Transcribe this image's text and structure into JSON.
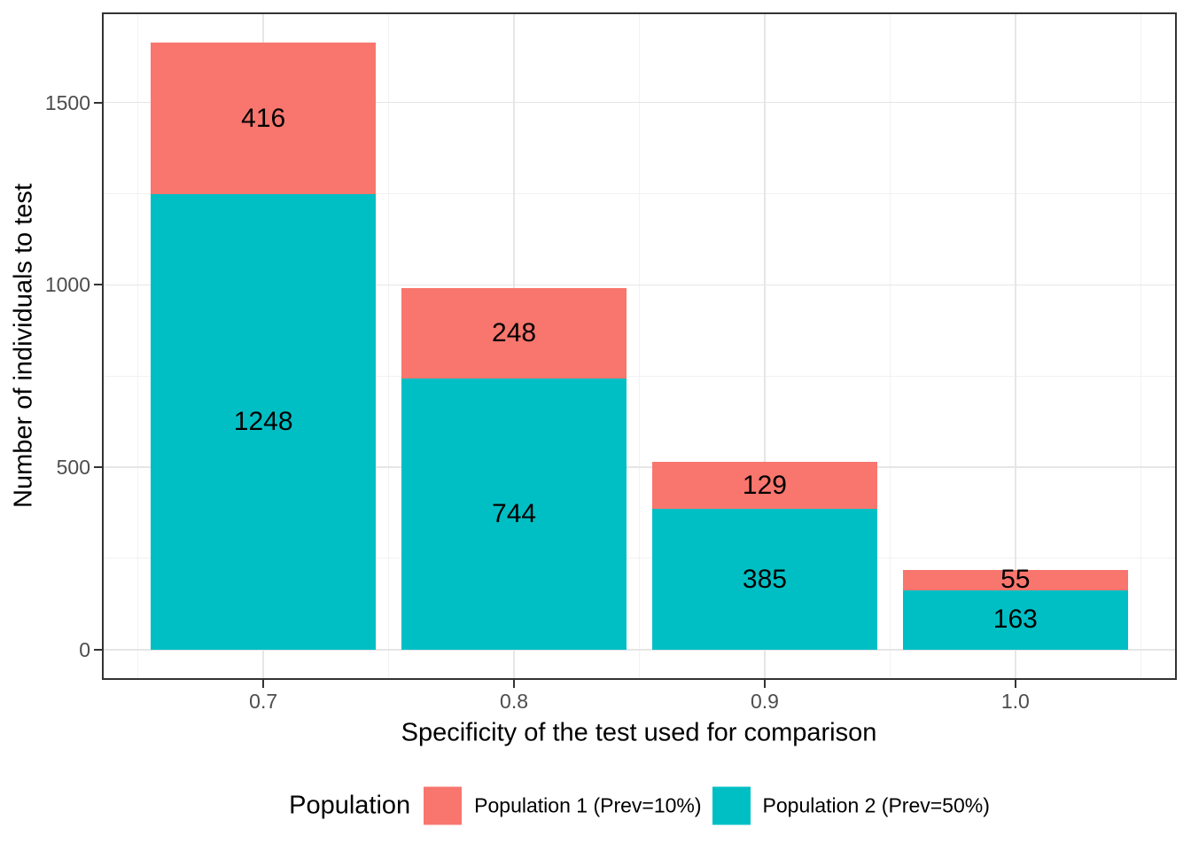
{
  "chart_data": {
    "type": "bar",
    "stacked": true,
    "title": "",
    "xlabel": "Specificity of the test used for comparison",
    "ylabel": "Number of individuals to test",
    "categories": [
      "0.7",
      "0.8",
      "0.9",
      "1.0"
    ],
    "x_values": [
      0.7,
      0.8,
      0.9,
      1.0
    ],
    "bar_width": 0.09,
    "series": [
      {
        "name": "Population 1 (Prev=10%)",
        "color": "#F8766D",
        "values": [
          416,
          248,
          129,
          55
        ]
      },
      {
        "name": "Population 2 (Prev=50%)",
        "color": "#00BFC4",
        "values": [
          1248,
          744,
          385,
          163
        ]
      }
    ],
    "stack_order_bottom_to_top": [
      1,
      0
    ],
    "totals": [
      1664,
      992,
      514,
      218
    ],
    "bar_value_labels_shown": true,
    "axes": {
      "y_ticks": [
        0,
        500,
        1000,
        1500
      ],
      "y_tick_labels": [
        "0",
        "500",
        "1000",
        "1500"
      ],
      "x_tick_labels": [
        "0.7",
        "0.8",
        "0.9",
        "1.0"
      ],
      "y_minor_gridlines": [
        250,
        750,
        1250
      ],
      "x_minor_gridlines": [
        0.65,
        0.75,
        0.85,
        0.95,
        1.05
      ],
      "xlim": [
        0.6356,
        1.0644
      ],
      "ylim": [
        -83.2,
        1747.2
      ],
      "grid": "major+minor"
    },
    "legend": {
      "title": "Population",
      "position": "bottom"
    }
  },
  "style": {
    "background": "#FFFFFF",
    "panel_border_color": "#333333",
    "grid_major_color": "#E6E6E6",
    "grid_minor_color": "#F2F2F2",
    "tick_mark_color": "#333333",
    "tick_label_color": "#4D4D4D",
    "text_color": "#000000"
  }
}
